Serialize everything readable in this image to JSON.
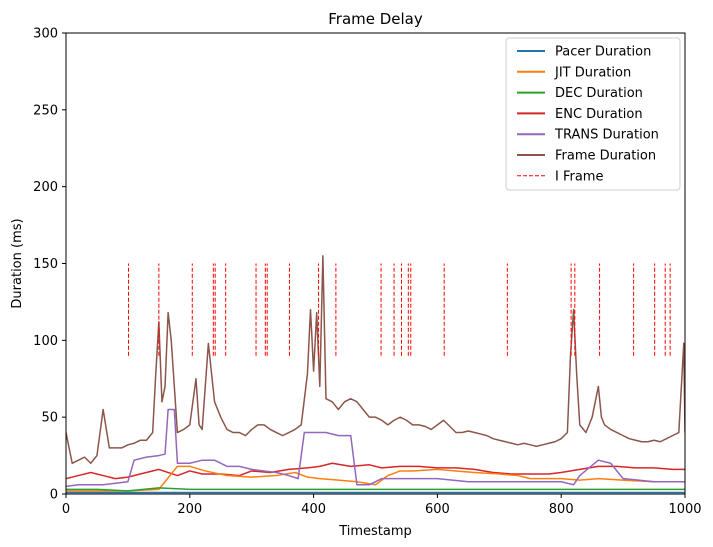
{
  "chart_data": {
    "type": "line",
    "title": "Frame Delay",
    "xlabel": "Timestamp",
    "ylabel": "Duration (ms)",
    "xlim": [
      0,
      1000
    ],
    "ylim": [
      0,
      300
    ],
    "xticks": [
      "0",
      "200",
      "400",
      "600",
      "800",
      "1000"
    ],
    "yticks": [
      "0",
      "50",
      "100",
      "150",
      "200",
      "250",
      "300"
    ],
    "grid": false,
    "legend_position": "top-right",
    "series": [
      {
        "name": "Pacer Duration",
        "color": "#1f77b4",
        "points": [
          [
            0,
            1
          ],
          [
            100,
            1
          ],
          [
            200,
            1
          ],
          [
            300,
            1
          ],
          [
            400,
            1
          ],
          [
            500,
            1
          ],
          [
            600,
            1
          ],
          [
            700,
            1
          ],
          [
            800,
            1
          ],
          [
            900,
            1
          ],
          [
            1000,
            1
          ]
        ]
      },
      {
        "name": "JIT Duration",
        "color": "#ff7f0e",
        "points": [
          [
            0,
            2
          ],
          [
            50,
            2
          ],
          [
            100,
            2
          ],
          [
            150,
            3
          ],
          [
            180,
            18
          ],
          [
            200,
            18
          ],
          [
            225,
            15
          ],
          [
            260,
            12
          ],
          [
            300,
            11
          ],
          [
            340,
            12
          ],
          [
            370,
            14
          ],
          [
            390,
            11
          ],
          [
            410,
            10
          ],
          [
            440,
            9
          ],
          [
            470,
            8
          ],
          [
            500,
            6
          ],
          [
            520,
            12
          ],
          [
            540,
            15
          ],
          [
            560,
            15
          ],
          [
            600,
            16
          ],
          [
            630,
            15
          ],
          [
            660,
            14
          ],
          [
            700,
            13
          ],
          [
            730,
            12
          ],
          [
            750,
            10
          ],
          [
            800,
            10
          ],
          [
            830,
            9
          ],
          [
            860,
            10
          ],
          [
            900,
            9
          ],
          [
            950,
            8
          ],
          [
            1000,
            8
          ]
        ]
      },
      {
        "name": "DEC Duration",
        "color": "#2ca02c",
        "points": [
          [
            0,
            3
          ],
          [
            50,
            3
          ],
          [
            100,
            2
          ],
          [
            150,
            4
          ],
          [
            200,
            3
          ],
          [
            250,
            3
          ],
          [
            300,
            3
          ],
          [
            350,
            3
          ],
          [
            400,
            3
          ],
          [
            450,
            3
          ],
          [
            500,
            3
          ],
          [
            550,
            3
          ],
          [
            600,
            3
          ],
          [
            650,
            3
          ],
          [
            700,
            3
          ],
          [
            750,
            3
          ],
          [
            800,
            3
          ],
          [
            850,
            3
          ],
          [
            900,
            3
          ],
          [
            950,
            3
          ],
          [
            1000,
            3
          ]
        ]
      },
      {
        "name": "ENC Duration",
        "color": "#d62728",
        "points": [
          [
            0,
            10
          ],
          [
            20,
            12
          ],
          [
            40,
            14
          ],
          [
            60,
            12
          ],
          [
            80,
            10
          ],
          [
            100,
            11
          ],
          [
            120,
            13
          ],
          [
            150,
            16
          ],
          [
            180,
            12
          ],
          [
            200,
            15
          ],
          [
            220,
            13
          ],
          [
            250,
            13
          ],
          [
            280,
            12
          ],
          [
            300,
            15
          ],
          [
            330,
            14
          ],
          [
            360,
            16
          ],
          [
            390,
            17
          ],
          [
            410,
            18
          ],
          [
            430,
            20
          ],
          [
            460,
            18
          ],
          [
            490,
            19
          ],
          [
            510,
            17
          ],
          [
            540,
            18
          ],
          [
            570,
            18
          ],
          [
            600,
            17
          ],
          [
            630,
            17
          ],
          [
            660,
            16
          ],
          [
            690,
            14
          ],
          [
            720,
            13
          ],
          [
            750,
            13
          ],
          [
            780,
            13
          ],
          [
            800,
            14
          ],
          [
            830,
            16
          ],
          [
            860,
            18
          ],
          [
            890,
            18
          ],
          [
            920,
            17
          ],
          [
            950,
            17
          ],
          [
            980,
            16
          ],
          [
            1000,
            16
          ]
        ]
      },
      {
        "name": "TRANS Duration",
        "color": "#9467bd",
        "points": [
          [
            0,
            5
          ],
          [
            20,
            6
          ],
          [
            40,
            6
          ],
          [
            60,
            6
          ],
          [
            80,
            7
          ],
          [
            100,
            8
          ],
          [
            110,
            22
          ],
          [
            130,
            24
          ],
          [
            150,
            25
          ],
          [
            160,
            26
          ],
          [
            165,
            55
          ],
          [
            175,
            55
          ],
          [
            180,
            20
          ],
          [
            200,
            20
          ],
          [
            220,
            22
          ],
          [
            240,
            22
          ],
          [
            260,
            18
          ],
          [
            280,
            18
          ],
          [
            300,
            16
          ],
          [
            340,
            14
          ],
          [
            360,
            12
          ],
          [
            375,
            10
          ],
          [
            385,
            40
          ],
          [
            400,
            40
          ],
          [
            420,
            40
          ],
          [
            440,
            38
          ],
          [
            460,
            38
          ],
          [
            470,
            6
          ],
          [
            490,
            6
          ],
          [
            500,
            8
          ],
          [
            510,
            10
          ],
          [
            520,
            10
          ],
          [
            550,
            10
          ],
          [
            600,
            10
          ],
          [
            650,
            8
          ],
          [
            700,
            8
          ],
          [
            750,
            8
          ],
          [
            780,
            8
          ],
          [
            800,
            8
          ],
          [
            820,
            6
          ],
          [
            830,
            12
          ],
          [
            860,
            22
          ],
          [
            880,
            20
          ],
          [
            900,
            10
          ],
          [
            950,
            8
          ],
          [
            1000,
            8
          ]
        ]
      },
      {
        "name": "Frame Duration",
        "color": "#8c564b",
        "points": [
          [
            0,
            40
          ],
          [
            10,
            20
          ],
          [
            20,
            22
          ],
          [
            30,
            24
          ],
          [
            40,
            20
          ],
          [
            50,
            25
          ],
          [
            60,
            55
          ],
          [
            70,
            30
          ],
          [
            80,
            30
          ],
          [
            90,
            30
          ],
          [
            100,
            32
          ],
          [
            110,
            33
          ],
          [
            120,
            35
          ],
          [
            130,
            35
          ],
          [
            140,
            40
          ],
          [
            145,
            78
          ],
          [
            150,
            112
          ],
          [
            155,
            60
          ],
          [
            160,
            70
          ],
          [
            165,
            118
          ],
          [
            170,
            100
          ],
          [
            180,
            40
          ],
          [
            190,
            42
          ],
          [
            200,
            45
          ],
          [
            210,
            75
          ],
          [
            215,
            45
          ],
          [
            220,
            42
          ],
          [
            230,
            98
          ],
          [
            240,
            60
          ],
          [
            250,
            50
          ],
          [
            260,
            42
          ],
          [
            270,
            40
          ],
          [
            280,
            40
          ],
          [
            290,
            38
          ],
          [
            300,
            42
          ],
          [
            310,
            45
          ],
          [
            320,
            45
          ],
          [
            330,
            42
          ],
          [
            340,
            40
          ],
          [
            350,
            38
          ],
          [
            360,
            40
          ],
          [
            370,
            42
          ],
          [
            380,
            45
          ],
          [
            390,
            78
          ],
          [
            395,
            120
          ],
          [
            400,
            80
          ],
          [
            405,
            118
          ],
          [
            410,
            70
          ],
          [
            415,
            155
          ],
          [
            420,
            62
          ],
          [
            430,
            60
          ],
          [
            440,
            55
          ],
          [
            450,
            60
          ],
          [
            460,
            62
          ],
          [
            470,
            60
          ],
          [
            480,
            55
          ],
          [
            490,
            50
          ],
          [
            500,
            50
          ],
          [
            510,
            48
          ],
          [
            520,
            45
          ],
          [
            530,
            48
          ],
          [
            540,
            50
          ],
          [
            550,
            48
          ],
          [
            560,
            45
          ],
          [
            570,
            45
          ],
          [
            580,
            44
          ],
          [
            590,
            42
          ],
          [
            600,
            45
          ],
          [
            610,
            48
          ],
          [
            620,
            44
          ],
          [
            630,
            40
          ],
          [
            640,
            40
          ],
          [
            650,
            41
          ],
          [
            660,
            40
          ],
          [
            670,
            39
          ],
          [
            680,
            38
          ],
          [
            690,
            36
          ],
          [
            700,
            35
          ],
          [
            710,
            34
          ],
          [
            720,
            33
          ],
          [
            730,
            32
          ],
          [
            740,
            33
          ],
          [
            750,
            32
          ],
          [
            760,
            31
          ],
          [
            770,
            32
          ],
          [
            780,
            33
          ],
          [
            790,
            34
          ],
          [
            800,
            36
          ],
          [
            810,
            40
          ],
          [
            815,
            90
          ],
          [
            820,
            120
          ],
          [
            825,
            78
          ],
          [
            830,
            45
          ],
          [
            840,
            40
          ],
          [
            850,
            50
          ],
          [
            860,
            70
          ],
          [
            865,
            50
          ],
          [
            870,
            45
          ],
          [
            880,
            42
          ],
          [
            890,
            40
          ],
          [
            900,
            38
          ],
          [
            910,
            36
          ],
          [
            920,
            35
          ],
          [
            930,
            34
          ],
          [
            940,
            34
          ],
          [
            950,
            35
          ],
          [
            960,
            34
          ],
          [
            970,
            36
          ],
          [
            980,
            38
          ],
          [
            990,
            40
          ],
          [
            998,
            98
          ],
          [
            1000,
            40
          ]
        ]
      },
      {
        "name": "I Frame",
        "color": "#ff0000",
        "dashed": true,
        "vlines": [
          101,
          150,
          204,
          238,
          241,
          258,
          307,
          322,
          325,
          361,
          408,
          436,
          509,
          530,
          542,
          553,
          557,
          611,
          713,
          816,
          822,
          862,
          917,
          951,
          968,
          976
        ],
        "ymin": 90,
        "ymax": 150
      }
    ]
  }
}
